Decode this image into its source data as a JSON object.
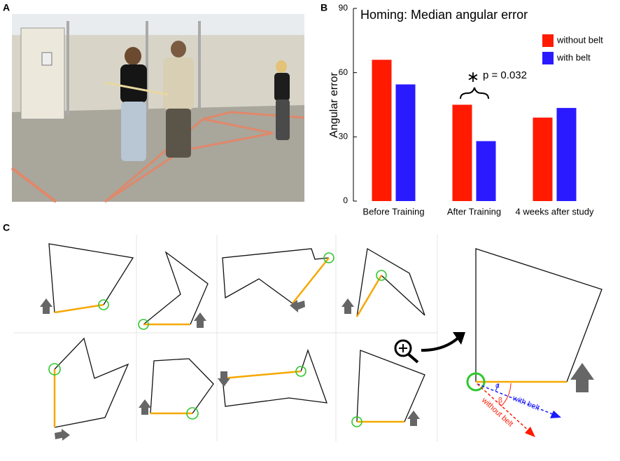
{
  "panel_labels": [
    "A",
    "B",
    "C"
  ],
  "chart_data": {
    "type": "bar",
    "title": "Homing: Median angular error",
    "y_label": "Angular error",
    "categories": [
      "Before Training",
      "After Training",
      "4 weeks after study"
    ],
    "series": [
      {
        "name": "without belt",
        "color": "#ff1a00",
        "values": [
          66,
          45,
          39
        ]
      },
      {
        "name": "with belt",
        "color": "#2a1aff",
        "values": [
          54.5,
          28,
          43.5
        ]
      }
    ],
    "ylim": [
      0,
      90
    ],
    "yticks": [
      0,
      30,
      60,
      90
    ],
    "grid": false,
    "legend": "upper right",
    "annotations": [
      "∗",
      "p = 0.032"
    ]
  },
  "diagram": {
    "alpha": "α",
    "beta": "β",
    "with_belt": "with belt",
    "without_belt": "without belt"
  }
}
